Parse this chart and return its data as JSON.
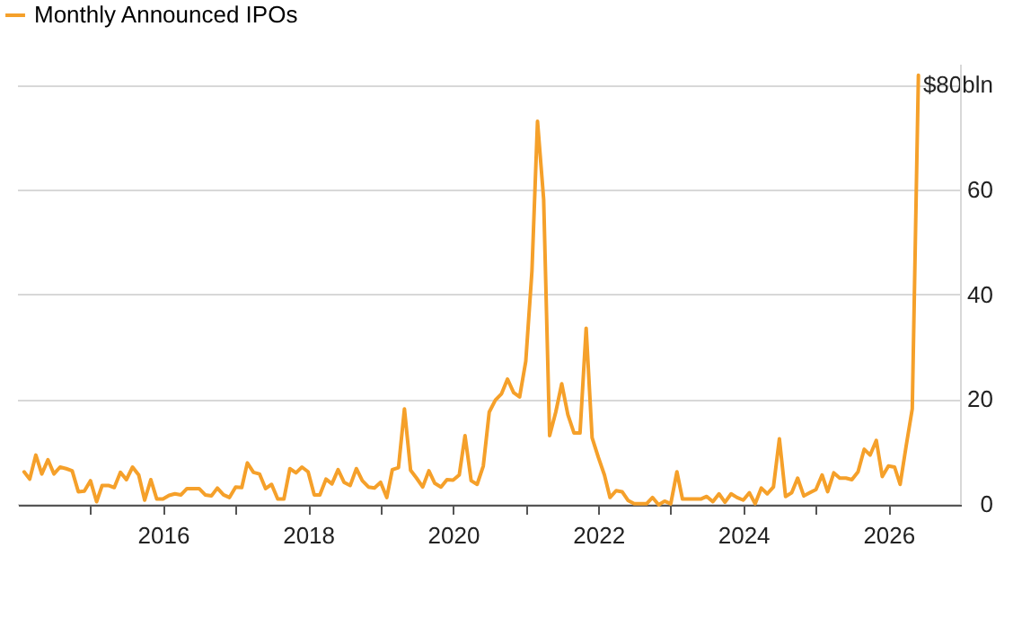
{
  "chart_data": {
    "type": "line",
    "x": [
      "2014-02",
      "2014-03",
      "2014-04",
      "2014-05",
      "2014-06",
      "2014-07",
      "2014-08",
      "2014-09",
      "2014-10",
      "2014-11",
      "2014-12",
      "2015-01",
      "2015-02",
      "2015-03",
      "2015-04",
      "2015-05",
      "2015-06",
      "2015-07",
      "2015-08",
      "2015-09",
      "2015-10",
      "2015-11",
      "2015-12",
      "2016-01",
      "2016-02",
      "2016-03",
      "2016-04",
      "2016-05",
      "2016-06",
      "2016-07",
      "2016-08",
      "2016-09",
      "2016-10",
      "2016-11",
      "2016-12",
      "2017-01",
      "2017-02",
      "2017-03",
      "2017-04",
      "2017-05",
      "2017-06",
      "2017-07",
      "2017-08",
      "2017-09",
      "2017-10",
      "2017-11",
      "2017-12",
      "2018-01",
      "2018-02",
      "2018-03",
      "2018-04",
      "2018-05",
      "2018-06",
      "2018-07",
      "2018-08",
      "2018-09",
      "2018-10",
      "2018-11",
      "2018-12",
      "2019-01",
      "2019-02",
      "2019-03",
      "2019-04",
      "2019-05",
      "2019-06",
      "2019-07",
      "2019-08",
      "2019-09",
      "2019-10",
      "2019-11",
      "2019-12",
      "2020-01",
      "2020-02",
      "2020-03",
      "2020-04",
      "2020-05",
      "2020-06",
      "2020-07",
      "2020-08",
      "2020-09",
      "2020-10",
      "2020-11",
      "2020-12",
      "2021-01",
      "2021-02",
      "2021-03",
      "2021-04",
      "2021-05",
      "2021-06",
      "2021-07",
      "2021-08",
      "2021-09",
      "2021-10",
      "2021-11",
      "2021-12",
      "2022-01",
      "2022-02",
      "2022-03",
      "2022-04",
      "2022-05",
      "2022-06",
      "2022-07",
      "2022-08",
      "2022-09",
      "2022-10",
      "2022-11",
      "2022-12",
      "2023-01",
      "2023-02",
      "2023-03",
      "2023-04",
      "2023-05",
      "2023-06",
      "2023-07",
      "2023-08",
      "2023-09",
      "2023-10",
      "2023-11",
      "2023-12",
      "2024-01",
      "2024-02",
      "2024-03",
      "2024-04",
      "2024-05",
      "2024-06",
      "2024-07",
      "2024-08",
      "2024-09",
      "2024-10",
      "2024-11",
      "2024-12",
      "2025-01",
      "2025-02",
      "2025-03",
      "2025-04",
      "2025-05",
      "2025-06",
      "2025-07",
      "2025-08",
      "2025-09",
      "2025-10",
      "2025-11",
      "2025-12",
      "2026-01",
      "2026-02",
      "2026-03",
      "2026-04",
      "2026-05",
      "2026-06"
    ],
    "series": [
      {
        "name": "Monthly Announced IPOs",
        "color": "#f5a02a",
        "values": [
          6.3,
          4.9,
          9.5,
          5.9,
          8.6,
          5.9,
          7.2,
          6.9,
          6.5,
          2.5,
          2.6,
          4.6,
          0.6,
          3.7,
          3.7,
          3.3,
          6.2,
          4.8,
          7.2,
          5.7,
          0.9,
          4.8,
          1.1,
          1.1,
          1.8,
          2.1,
          1.9,
          3.1,
          3.1,
          3.1,
          1.9,
          1.7,
          3.2,
          1.9,
          1.4,
          3.4,
          3.3,
          8.0,
          6.2,
          5.9,
          3.1,
          3.9,
          1.1,
          1.1,
          6.9,
          6.1,
          7.2,
          6.3,
          1.9,
          1.9,
          4.9,
          4.0,
          6.7,
          4.3,
          3.7,
          6.9,
          4.6,
          3.4,
          3.2,
          4.3,
          1.4,
          6.7,
          7.1,
          18.3,
          6.6,
          5.1,
          3.4,
          6.5,
          4.1,
          3.4,
          4.8,
          4.7,
          5.7,
          13.2,
          4.6,
          3.9,
          7.4,
          17.7,
          20.0,
          21.2,
          24.0,
          21.4,
          20.6,
          27.4,
          44.6,
          73.2,
          58.3,
          13.2,
          17.7,
          23.1,
          17.2,
          13.7,
          13.7,
          33.7,
          12.8,
          9.1,
          5.7,
          1.4,
          2.7,
          2.5,
          0.8,
          0.2,
          0.2,
          0.2,
          1.4,
          0,
          0.7,
          0.2,
          6.3,
          1.1,
          1.1,
          1.1,
          1.1,
          1.6,
          0.6,
          2.1,
          0.5,
          2.1,
          1.4,
          0.9,
          2.3,
          0.2,
          3.2,
          2.1,
          3.4,
          12.6,
          1.6,
          2.3,
          5.1,
          1.7,
          2.3,
          2.9,
          5.7,
          2.5,
          6.1,
          5.1,
          5.1,
          4.8,
          6.3,
          10.6,
          9.5,
          12.3,
          5.4,
          7.4,
          7.2,
          3.9,
          11.4,
          18.3,
          82
        ]
      }
    ],
    "xlim": [
      "2014-01",
      "2027-01"
    ],
    "xticks": [
      {
        "value": "2015",
        "label": null
      },
      "2016",
      {
        "value": "2017",
        "label": null
      },
      "2018",
      {
        "value": "2019",
        "label": null
      },
      "2020",
      {
        "value": "2021",
        "label": null
      },
      "2022",
      {
        "value": "2023",
        "label": null
      },
      "2024",
      {
        "value": "2025",
        "label": null
      },
      "2026"
    ],
    "ylim": [
      0,
      84
    ],
    "yticks": [
      0,
      20,
      40,
      60,
      {
        "value": 80,
        "label": "$80bln"
      }
    ],
    "grid": "y",
    "legend": "top left",
    "line_style": "solid",
    "marker": "none"
  }
}
